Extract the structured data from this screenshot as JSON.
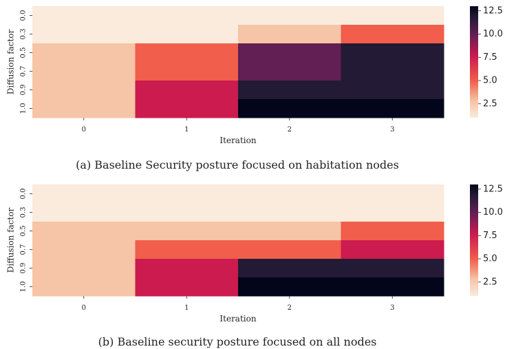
{
  "colors": {
    "colormap": "rocket_r",
    "tick_color": "#222222"
  },
  "chart_data": [
    {
      "type": "heatmap",
      "caption": "(a) Baseline Security posture focused on habitation nodes",
      "xlabel": "Iteration",
      "ylabel": "Diffusion factor",
      "x_categories": [
        "0",
        "1",
        "2",
        "3"
      ],
      "y_categories": [
        "0.0",
        "0.3",
        "0.5",
        "0.7",
        "0.9",
        "1.0"
      ],
      "values": [
        [
          1,
          1,
          1,
          1
        ],
        [
          1,
          1,
          3,
          6
        ],
        [
          3,
          6,
          10,
          12
        ],
        [
          3,
          6,
          10,
          12
        ],
        [
          3,
          8,
          12,
          12
        ],
        [
          3,
          8,
          13,
          13
        ]
      ],
      "colorbar": {
        "vmin": 1,
        "vmax": 13,
        "ticks": [
          "2.5",
          "5.0",
          "7.5",
          "10.0",
          "12.5"
        ]
      }
    },
    {
      "type": "heatmap",
      "caption": "(b) Baseline security posture focused on all nodes",
      "xlabel": "Iteration",
      "ylabel": "Diffusion factor",
      "x_categories": [
        "0",
        "1",
        "2",
        "3"
      ],
      "y_categories": [
        "0.0",
        "0.3",
        "0.5",
        "0.7",
        "0.9",
        "1.0"
      ],
      "values": [
        [
          1,
          1,
          1,
          1
        ],
        [
          1,
          1,
          1,
          1
        ],
        [
          3,
          3,
          3,
          6
        ],
        [
          3,
          6,
          6,
          8
        ],
        [
          3,
          8,
          12,
          12
        ],
        [
          3,
          8,
          13,
          13
        ]
      ],
      "colorbar": {
        "vmin": 1,
        "vmax": 13,
        "ticks": [
          "2.5",
          "5.0",
          "7.5",
          "10.0",
          "12.5"
        ]
      }
    }
  ]
}
